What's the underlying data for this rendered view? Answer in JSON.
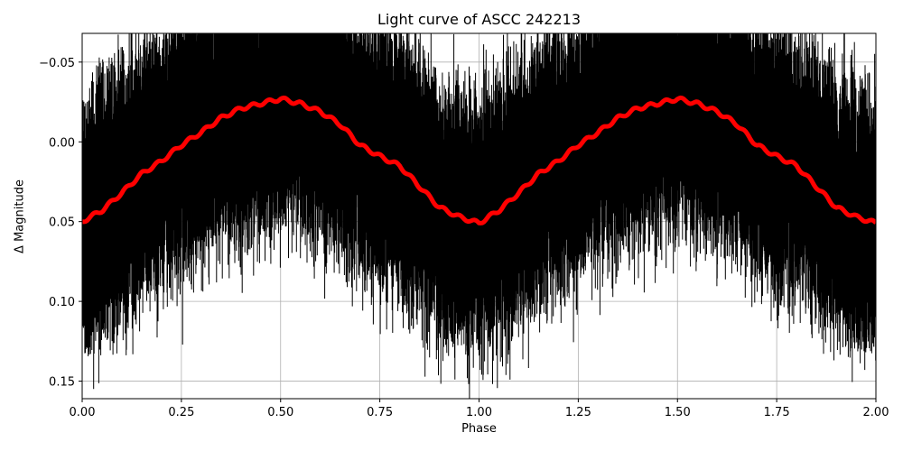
{
  "chart_data": {
    "type": "scatter",
    "title": "Light curve of ASCC 242213",
    "xlabel": "Phase",
    "ylabel": "Δ Magnitude",
    "xlim": [
      0.0,
      2.0
    ],
    "ylim": [
      0.161,
      -0.068
    ],
    "y_inverted": true,
    "grid": true,
    "x_ticks": [
      "0.00",
      "0.25",
      "0.50",
      "0.75",
      "1.00",
      "1.25",
      "1.50",
      "1.75",
      "2.00"
    ],
    "y_ticks": [
      "−0.05",
      "0.00",
      "0.05",
      "0.10",
      "0.15"
    ],
    "y_tick_values": [
      -0.05,
      0.0,
      0.05,
      0.1,
      0.15
    ],
    "series": [
      {
        "name": "observations",
        "style": "black points with vertical error bars",
        "color": "#000000",
        "description": "Dense phase-folded photometry spanning roughly -0.07 to 0.16 in Δ magnitude; error bars large (~±0.05)"
      },
      {
        "name": "binned model",
        "style": "thick red line",
        "color": "#ff0000",
        "x": [
          0.0,
          0.05,
          0.1,
          0.15,
          0.2,
          0.25,
          0.3,
          0.35,
          0.4,
          0.45,
          0.5,
          0.55,
          0.6,
          0.65,
          0.7,
          0.75,
          0.8,
          0.85,
          0.9,
          0.95,
          1.0,
          1.05,
          1.1,
          1.15,
          1.2,
          1.25,
          1.3,
          1.35,
          1.4,
          1.45,
          1.5,
          1.55,
          1.6,
          1.65,
          1.7,
          1.75,
          1.8,
          1.85,
          1.9,
          1.95,
          2.0
        ],
        "values": [
          0.05,
          0.043,
          0.032,
          0.02,
          0.012,
          0.002,
          -0.006,
          -0.015,
          -0.021,
          -0.024,
          -0.027,
          -0.024,
          -0.019,
          -0.011,
          0.002,
          0.009,
          0.015,
          0.028,
          0.041,
          0.047,
          0.051,
          0.043,
          0.032,
          0.02,
          0.012,
          0.002,
          -0.006,
          -0.015,
          -0.021,
          -0.024,
          -0.027,
          -0.024,
          -0.019,
          -0.011,
          0.002,
          0.009,
          0.015,
          0.028,
          0.041,
          0.047,
          0.051
        ]
      }
    ]
  }
}
